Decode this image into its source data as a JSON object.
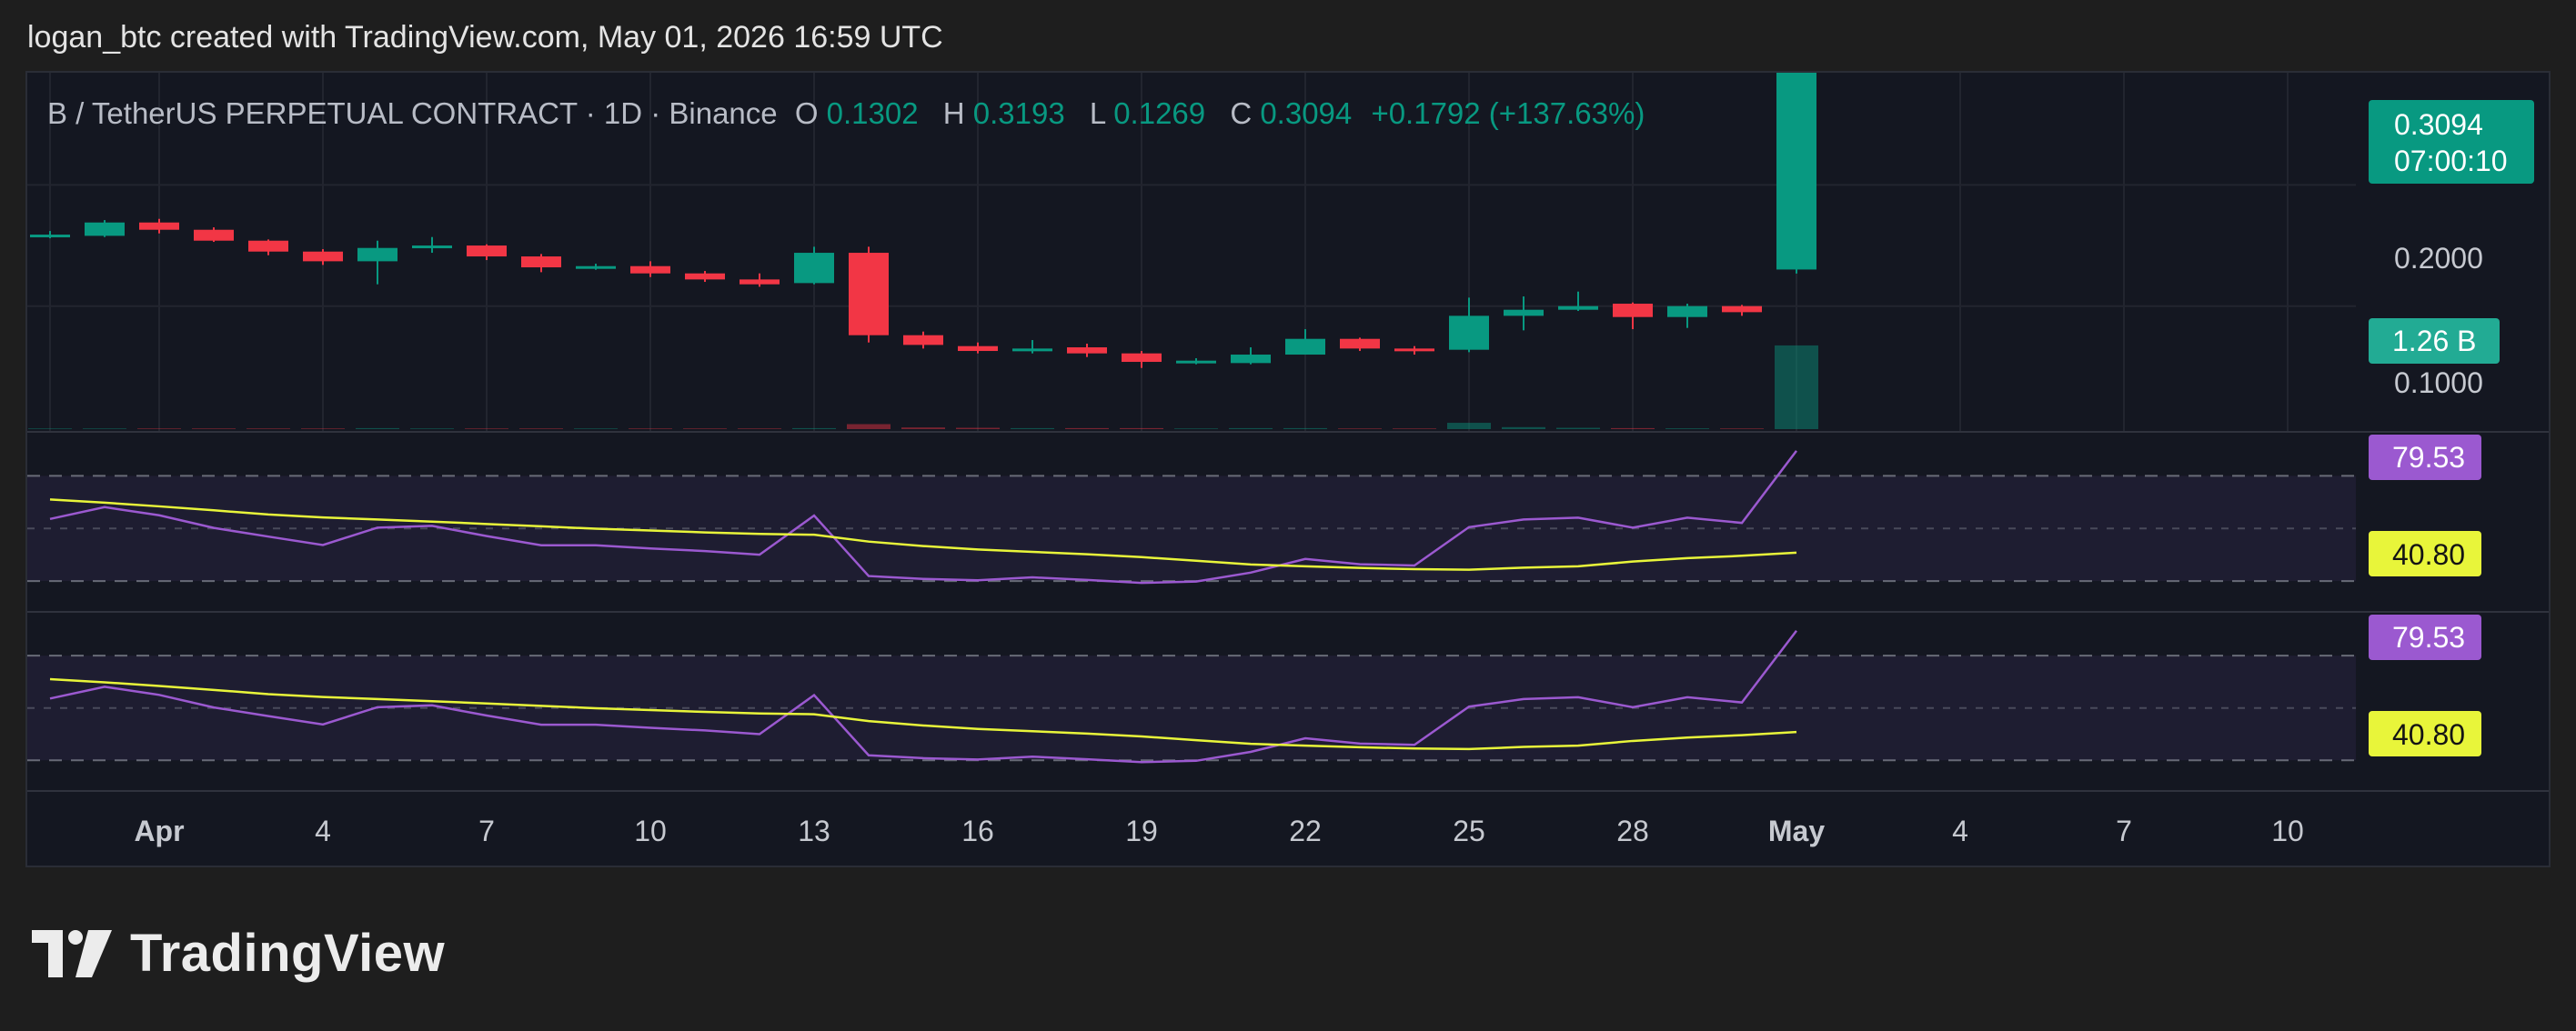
{
  "header": {
    "attribution": "logan_btc created with TradingView.com, May 01, 2026 16:59 UTC"
  },
  "legend": {
    "symbol": "B / TetherUS PERPETUAL CONTRACT · 1D · Binance",
    "o_label": "O",
    "o_value": "0.1302",
    "h_label": "H",
    "h_value": "0.3193",
    "l_label": "L",
    "l_value": "0.1269",
    "c_label": "C",
    "c_value": "0.3094",
    "change": "+0.1792 (+137.63%)"
  },
  "price_axis": {
    "last_price": "0.3094",
    "countdown": "07:00:10",
    "volume_badge": "1.26 B",
    "ticks": [
      "0.2000",
      "0.1000"
    ]
  },
  "indicators": [
    {
      "badge_high": "79.53",
      "badge_low": "40.80"
    },
    {
      "badge_high": "79.53",
      "badge_low": "40.80"
    }
  ],
  "x_axis": {
    "ticks": [
      {
        "day": 0,
        "label": "Apr",
        "bold": true
      },
      {
        "day": 3,
        "label": "4"
      },
      {
        "day": 6,
        "label": "7"
      },
      {
        "day": 9,
        "label": "10"
      },
      {
        "day": 12,
        "label": "13"
      },
      {
        "day": 15,
        "label": "16"
      },
      {
        "day": 18,
        "label": "19"
      },
      {
        "day": 21,
        "label": "22"
      },
      {
        "day": 24,
        "label": "25"
      },
      {
        "day": 27,
        "label": "28"
      },
      {
        "day": 30,
        "label": "May",
        "bold": true
      },
      {
        "day": 33,
        "label": "4"
      },
      {
        "day": 36,
        "label": "7"
      },
      {
        "day": 39,
        "label": "10"
      }
    ]
  },
  "colors": {
    "up": "#089981",
    "down": "#f23645",
    "rsi_line": "#9b59d0",
    "rsi_ma": "#e8f53a",
    "badge_rsi": "#9b59d0",
    "badge_ma": "#e8f53a",
    "last_price_badge": "#089981",
    "volume_badge": "#22ab94"
  },
  "footer": {
    "brand": "TradingView",
    "logo_icon": "tradingview-logo-icon"
  },
  "chart_data": [
    {
      "type": "candlestick",
      "x_unit": "days from 1 Apr 2026",
      "ylim": [
        0.0,
        0.33
      ],
      "candles": [
        {
          "d": -2,
          "o": 0.158,
          "h": 0.162,
          "l": 0.156,
          "c": 0.159
        },
        {
          "d": -1,
          "o": 0.158,
          "h": 0.171,
          "l": 0.157,
          "c": 0.169
        },
        {
          "d": 0,
          "o": 0.169,
          "h": 0.172,
          "l": 0.16,
          "c": 0.163
        },
        {
          "d": 1,
          "o": 0.163,
          "h": 0.165,
          "l": 0.153,
          "c": 0.154
        },
        {
          "d": 2,
          "o": 0.154,
          "h": 0.155,
          "l": 0.142,
          "c": 0.145
        },
        {
          "d": 3,
          "o": 0.145,
          "h": 0.147,
          "l": 0.134,
          "c": 0.137
        },
        {
          "d": 4,
          "o": 0.137,
          "h": 0.154,
          "l": 0.118,
          "c": 0.148
        },
        {
          "d": 5,
          "o": 0.148,
          "h": 0.157,
          "l": 0.144,
          "c": 0.15
        },
        {
          "d": 6,
          "o": 0.15,
          "h": 0.151,
          "l": 0.138,
          "c": 0.141
        },
        {
          "d": 7,
          "o": 0.141,
          "h": 0.143,
          "l": 0.128,
          "c": 0.132
        },
        {
          "d": 8,
          "o": 0.132,
          "h": 0.135,
          "l": 0.13,
          "c": 0.133
        },
        {
          "d": 9,
          "o": 0.133,
          "h": 0.137,
          "l": 0.124,
          "c": 0.127
        },
        {
          "d": 10,
          "o": 0.127,
          "h": 0.129,
          "l": 0.12,
          "c": 0.122
        },
        {
          "d": 11,
          "o": 0.122,
          "h": 0.127,
          "l": 0.116,
          "c": 0.118
        },
        {
          "d": 12,
          "o": 0.119,
          "h": 0.149,
          "l": 0.118,
          "c": 0.144
        },
        {
          "d": 13,
          "o": 0.144,
          "h": 0.149,
          "l": 0.07,
          "c": 0.076
        },
        {
          "d": 14,
          "o": 0.076,
          "h": 0.079,
          "l": 0.065,
          "c": 0.068
        },
        {
          "d": 15,
          "o": 0.067,
          "h": 0.07,
          "l": 0.061,
          "c": 0.063
        },
        {
          "d": 16,
          "o": 0.063,
          "h": 0.072,
          "l": 0.061,
          "c": 0.065
        },
        {
          "d": 17,
          "o": 0.066,
          "h": 0.069,
          "l": 0.058,
          "c": 0.061
        },
        {
          "d": 18,
          "o": 0.061,
          "h": 0.063,
          "l": 0.049,
          "c": 0.054
        },
        {
          "d": 19,
          "o": 0.054,
          "h": 0.057,
          "l": 0.052,
          "c": 0.055
        },
        {
          "d": 20,
          "o": 0.053,
          "h": 0.066,
          "l": 0.052,
          "c": 0.06
        },
        {
          "d": 21,
          "o": 0.06,
          "h": 0.081,
          "l": 0.06,
          "c": 0.073
        },
        {
          "d": 22,
          "o": 0.073,
          "h": 0.074,
          "l": 0.063,
          "c": 0.065
        },
        {
          "d": 23,
          "o": 0.065,
          "h": 0.067,
          "l": 0.06,
          "c": 0.063
        },
        {
          "d": 24,
          "o": 0.064,
          "h": 0.107,
          "l": 0.062,
          "c": 0.092
        },
        {
          "d": 25,
          "o": 0.092,
          "h": 0.108,
          "l": 0.08,
          "c": 0.097
        },
        {
          "d": 26,
          "o": 0.097,
          "h": 0.112,
          "l": 0.096,
          "c": 0.1
        },
        {
          "d": 27,
          "o": 0.102,
          "h": 0.103,
          "l": 0.081,
          "c": 0.091
        },
        {
          "d": 28,
          "o": 0.091,
          "h": 0.102,
          "l": 0.082,
          "c": 0.1
        },
        {
          "d": 29,
          "o": 0.1,
          "h": 0.101,
          "l": 0.092,
          "c": 0.095
        },
        {
          "d": 30,
          "o": 0.1302,
          "h": 0.3193,
          "l": 0.1269,
          "c": 0.3094
        }
      ]
    },
    {
      "type": "bar",
      "name": "Volume",
      "ylim": [
        0.0,
        1.3
      ],
      "x": [
        -2,
        -1,
        0,
        1,
        2,
        3,
        4,
        5,
        6,
        7,
        8,
        9,
        10,
        11,
        12,
        13,
        14,
        15,
        16,
        17,
        18,
        19,
        20,
        21,
        22,
        23,
        24,
        25,
        26,
        27,
        28,
        29,
        30
      ],
      "values": [
        0.01,
        0.01,
        0.01,
        0.01,
        0.01,
        0.01,
        0.015,
        0.01,
        0.01,
        0.01,
        0.01,
        0.01,
        0.01,
        0.01,
        0.015,
        0.075,
        0.025,
        0.02,
        0.015,
        0.015,
        0.015,
        0.01,
        0.015,
        0.015,
        0.01,
        0.01,
        0.095,
        0.03,
        0.02,
        0.015,
        0.012,
        0.01,
        1.26
      ]
    },
    {
      "type": "line",
      "name": "RSI",
      "ylim": [
        20,
        85
      ],
      "x": [
        -2,
        -1,
        0,
        1,
        2,
        3,
        4,
        5,
        6,
        7,
        8,
        9,
        10,
        11,
        12,
        13,
        14,
        15,
        16,
        17,
        18,
        19,
        20,
        21,
        22,
        23,
        24,
        25,
        26,
        27,
        28,
        29,
        30
      ],
      "series": [
        {
          "values": [
            53.6,
            58.1,
            55.0,
            50.2,
            46.9,
            43.7,
            50.3,
            51.0,
            47.1,
            43.6,
            43.6,
            42.4,
            41.4,
            40.0,
            54.9,
            31.9,
            30.8,
            30.3,
            31.4,
            30.4,
            29.3,
            29.8,
            33.2,
            38.4,
            36.4,
            35.9,
            50.5,
            53.4,
            54.1,
            50.3,
            54.1,
            52.1,
            79.53
          ]
        },
        {
          "values": [
            61.0,
            59.8,
            58.4,
            56.9,
            55.3,
            54.2,
            53.4,
            52.6,
            51.7,
            50.8,
            49.9,
            49.2,
            48.5,
            47.9,
            47.6,
            45.0,
            43.3,
            42.0,
            41.1,
            40.2,
            39.1,
            37.7,
            36.3,
            35.6,
            35.0,
            34.5,
            34.3,
            35.1,
            35.6,
            37.4,
            38.7,
            39.6,
            40.8
          ]
        }
      ]
    },
    {
      "type": "line",
      "name": "RSI",
      "ylim": [
        20,
        85
      ],
      "x": [
        -2,
        -1,
        0,
        1,
        2,
        3,
        4,
        5,
        6,
        7,
        8,
        9,
        10,
        11,
        12,
        13,
        14,
        15,
        16,
        17,
        18,
        19,
        20,
        21,
        22,
        23,
        24,
        25,
        26,
        27,
        28,
        29,
        30
      ],
      "series": [
        {
          "values": [
            53.6,
            58.1,
            55.0,
            50.2,
            46.9,
            43.7,
            50.3,
            51.0,
            47.1,
            43.6,
            43.6,
            42.4,
            41.4,
            40.0,
            54.9,
            31.9,
            30.8,
            30.3,
            31.4,
            30.4,
            29.3,
            29.8,
            33.2,
            38.4,
            36.4,
            35.9,
            50.5,
            53.4,
            54.1,
            50.3,
            54.1,
            52.1,
            79.53
          ]
        },
        {
          "values": [
            61.0,
            59.8,
            58.4,
            56.9,
            55.3,
            54.2,
            53.4,
            52.6,
            51.7,
            50.8,
            49.9,
            49.2,
            48.5,
            47.9,
            47.6,
            45.0,
            43.3,
            42.0,
            41.1,
            40.2,
            39.1,
            37.7,
            36.3,
            35.6,
            35.0,
            34.5,
            34.3,
            35.1,
            35.6,
            37.4,
            38.7,
            39.6,
            40.8
          ]
        }
      ]
    }
  ]
}
